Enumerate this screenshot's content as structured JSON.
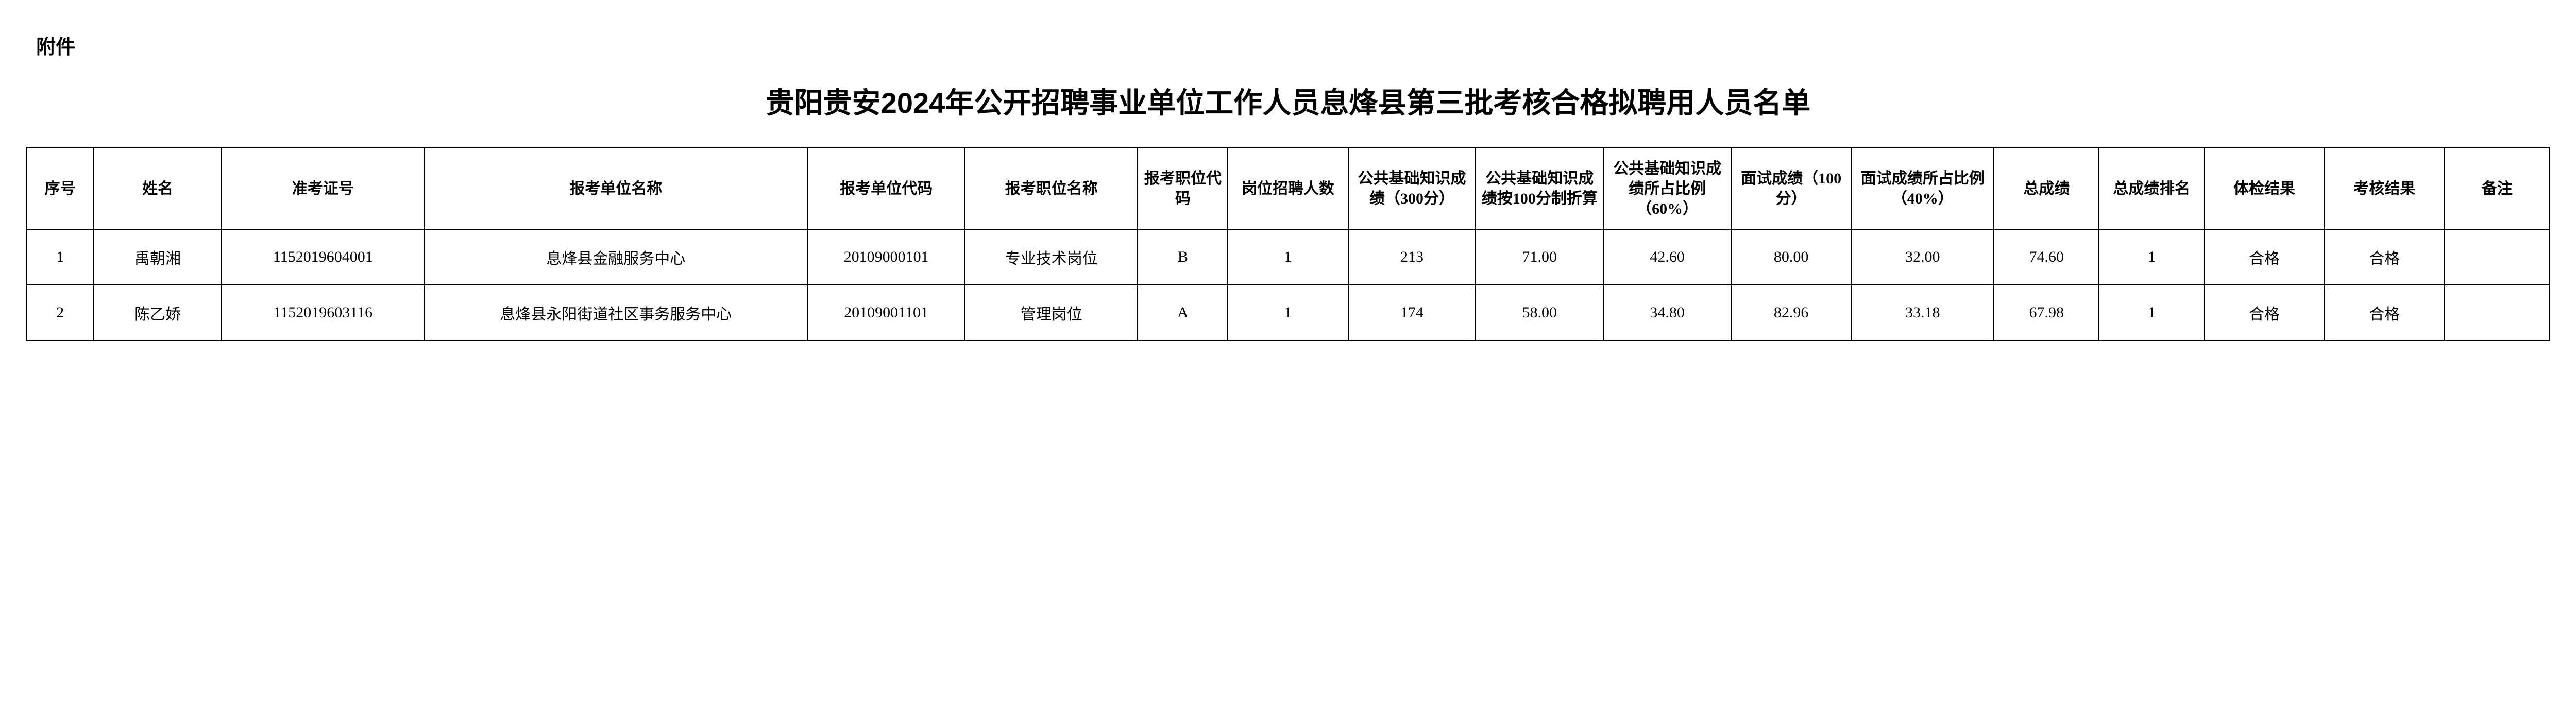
{
  "attachment_label": "附件",
  "title": "贵阳贵安2024年公开招聘事业单位工作人员息烽县第三批考核合格拟聘用人员名单",
  "table": {
    "columns": [
      "序号",
      "姓名",
      "准考证号",
      "报考单位名称",
      "报考单位代码",
      "报考职位名称",
      "报考职位代码",
      "岗位招聘人数",
      "公共基础知识成绩（300分）",
      "公共基础知识成绩按100分制折算",
      "公共基础知识成绩所占比例（60%）",
      "面试成绩（100分）",
      "面试成绩所占比例（40%）",
      "总成绩",
      "总成绩排名",
      "体检结果",
      "考核结果",
      "备注"
    ],
    "rows": [
      {
        "seq": "1",
        "name": "禹朝湘",
        "exam_no": "1152019604001",
        "unit_name": "息烽县金融服务中心",
        "unit_code": "20109000101",
        "position_name": "专业技术岗位",
        "position_code": "B",
        "recruit_count": "1",
        "public_300": "213",
        "public_100": "71.00",
        "public_60": "42.60",
        "interview_100": "80.00",
        "interview_40": "32.00",
        "total": "74.60",
        "rank": "1",
        "physical": "合格",
        "assess": "合格",
        "remark": ""
      },
      {
        "seq": "2",
        "name": "陈乙娇",
        "exam_no": "1152019603116",
        "unit_name": "息烽县永阳街道社区事务服务中心",
        "unit_code": "20109001101",
        "position_name": "管理岗位",
        "position_code": "A",
        "recruit_count": "1",
        "public_300": "174",
        "public_100": "58.00",
        "public_60": "34.80",
        "interview_100": "82.96",
        "interview_40": "33.18",
        "total": "67.98",
        "rank": "1",
        "physical": "合格",
        "assess": "合格",
        "remark": ""
      }
    ]
  }
}
